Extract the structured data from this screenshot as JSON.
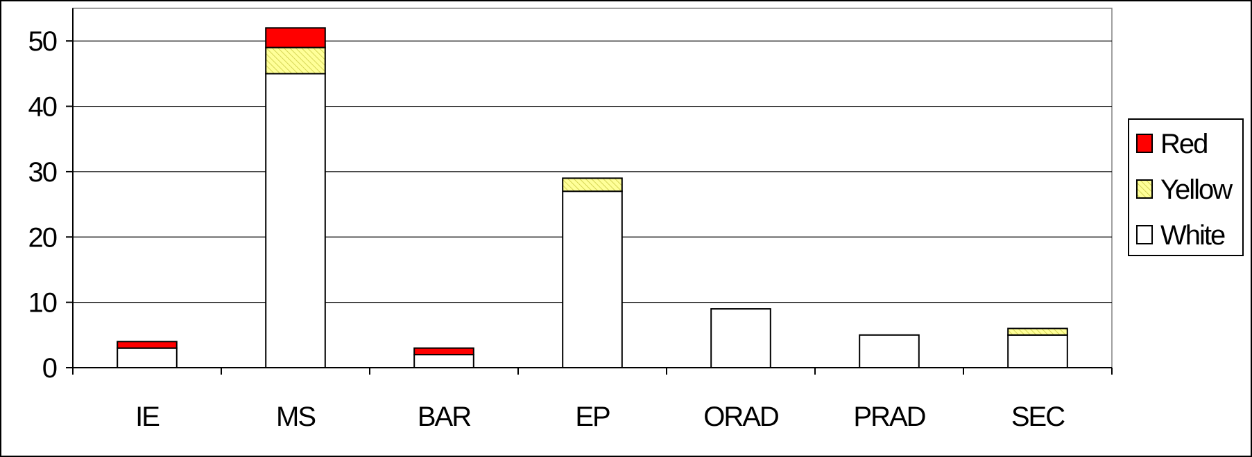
{
  "chart_data": {
    "type": "bar",
    "stacked": true,
    "categories": [
      "IE",
      "MS",
      "BAR",
      "EP",
      "ORAD",
      "PRAD",
      "SEC"
    ],
    "series": [
      {
        "name": "White",
        "values": [
          3,
          45,
          2,
          27,
          9,
          5,
          5
        ],
        "color": "#ffffff",
        "pattern": "none"
      },
      {
        "name": "Yellow",
        "values": [
          0,
          4,
          0,
          2,
          0,
          0,
          1
        ],
        "color": "#ffff99",
        "pattern": "diagonal-hatch"
      },
      {
        "name": "Red",
        "values": [
          1,
          3,
          1,
          0,
          0,
          0,
          0
        ],
        "color": "#ff0000",
        "pattern": "none"
      }
    ],
    "title": "",
    "xlabel": "",
    "ylabel": "",
    "ylim": [
      0,
      55
    ],
    "yticks": [
      0,
      10,
      20,
      30,
      40,
      50
    ],
    "grid": true,
    "legend": {
      "placement": "right",
      "order": [
        "Red",
        "Yellow",
        "White"
      ]
    }
  }
}
